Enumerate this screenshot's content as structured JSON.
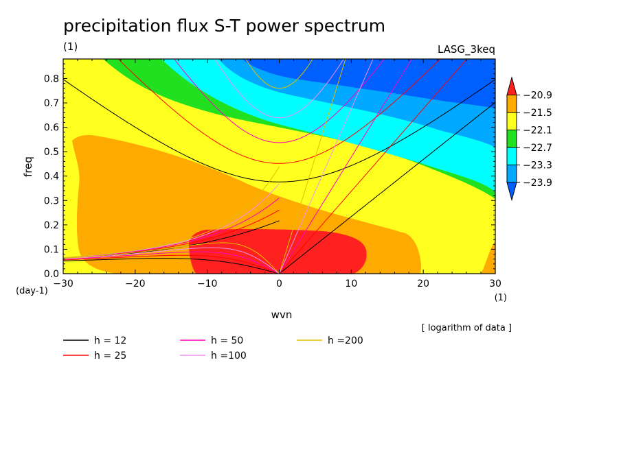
{
  "title": "precipitation flux S-T power spectrum",
  "subtitle_left": "(1)",
  "subtitle_right": "LASG_3keq",
  "note": "[ logarithm of data ]",
  "chart_data": {
    "type": "heatmap",
    "xlabel": "wvn",
    "ylabel": "freq",
    "x_unit": "(1)",
    "y_unit": "(day-1)",
    "xlim": [
      -30,
      30
    ],
    "ylim": [
      0,
      0.88
    ],
    "x_ticks": [
      -30,
      -20,
      -10,
      0,
      10,
      20,
      30
    ],
    "y_ticks": [
      0.0,
      0.1,
      0.2,
      0.3,
      0.4,
      0.5,
      0.6,
      0.7,
      0.8
    ],
    "colorbar": {
      "levels": [
        "-20.9",
        "-21.5",
        "-22.1",
        "-22.7",
        "-23.3",
        "-23.9"
      ],
      "colors": [
        "#ff2020",
        "#ffaa00",
        "#ffff20",
        "#20e020",
        "#00ffff",
        "#00a8ff",
        "#0060ff"
      ]
    },
    "dispersion_curves": [
      {
        "name": "h = 12",
        "h": 12,
        "color": "#000000"
      },
      {
        "name": "h = 25",
        "h": 25,
        "color": "#ff0000"
      },
      {
        "name": "h = 50",
        "h": 50,
        "color": "#ff00c0"
      },
      {
        "name": "h =100",
        "h": 100,
        "color": "#f090f0"
      },
      {
        "name": "h =200",
        "h": 200,
        "color": "#e0c000"
      }
    ]
  }
}
